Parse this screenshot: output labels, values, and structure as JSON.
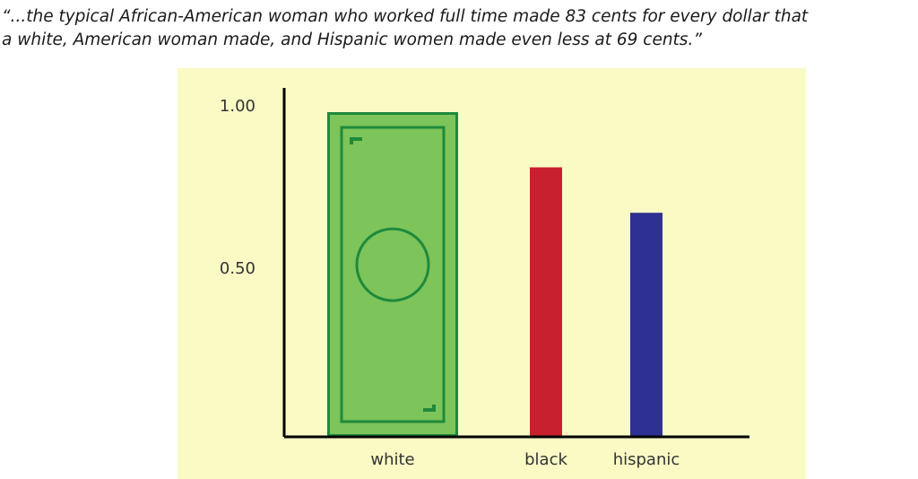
{
  "quote": {
    "line1": "“...the typical African-American woman who worked full time made 83 cents for every dollar that",
    "line2": "a white, American woman made, and Hispanic women made even less at 69 cents.”"
  },
  "chart_data": {
    "type": "bar",
    "categories": [
      "white",
      "black",
      "hispanic"
    ],
    "values": [
      1.0,
      0.83,
      0.69
    ],
    "y_ticks": [
      {
        "value": 0.5,
        "label": "0.50"
      },
      {
        "value": 1.0,
        "label": "1.00"
      }
    ],
    "ylim": [
      0,
      1.0
    ],
    "grid": false,
    "colors": {
      "panel_background": "#fafac5",
      "axis": "#000000",
      "white_bar_fill": "#7dc45a",
      "white_bar_stroke": "#1e8a3c",
      "black_bar": "#c8202e",
      "hispanic_bar": "#2e3192"
    },
    "white_bar_style": "dollar-bill-icon"
  }
}
